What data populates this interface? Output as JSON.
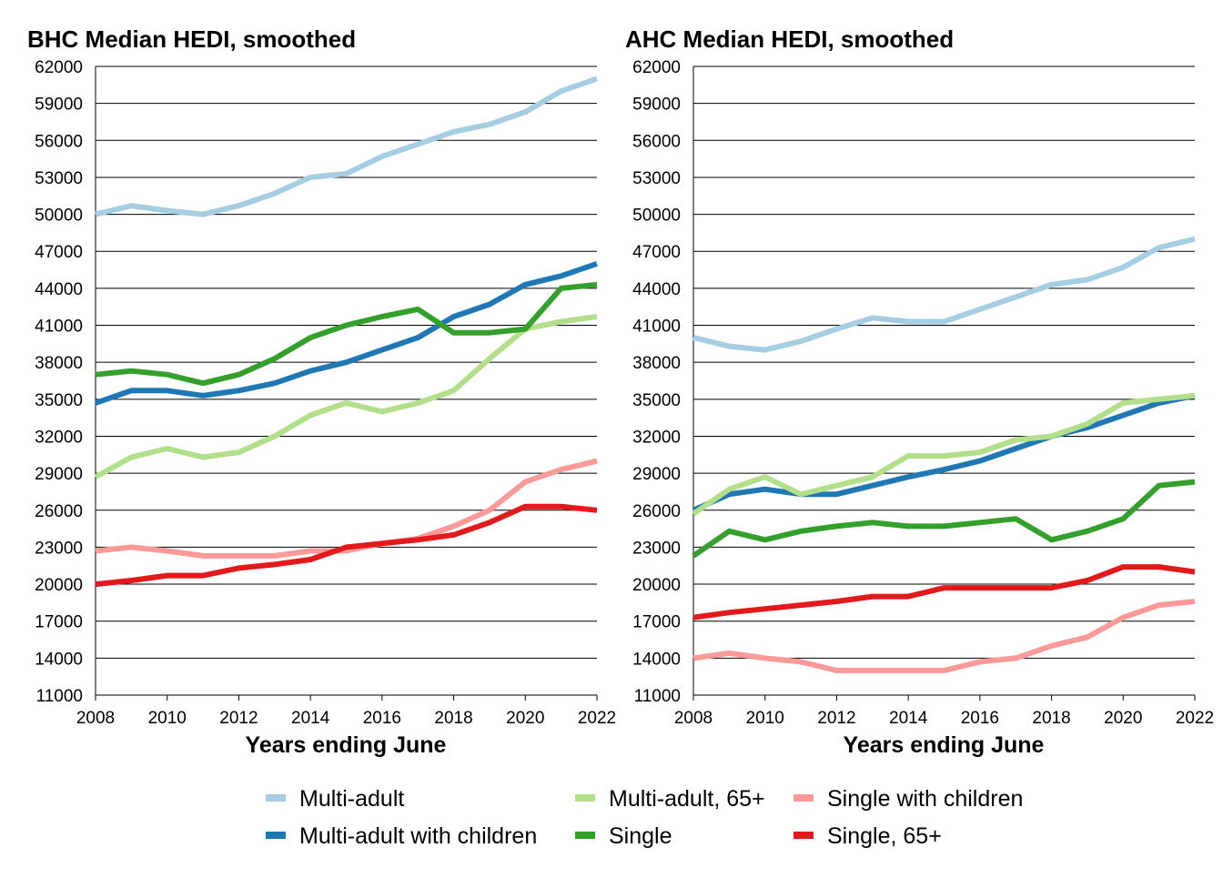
{
  "chart_data": [
    {
      "type": "line",
      "title": "BHC Median HEDI, smoothed",
      "xlabel": "Years ending June",
      "ylabel": "",
      "xlim": [
        2008,
        2022
      ],
      "ylim": [
        11000,
        62000
      ],
      "yticks": [
        11000,
        14000,
        17000,
        20000,
        23000,
        26000,
        29000,
        32000,
        35000,
        38000,
        41000,
        44000,
        47000,
        50000,
        53000,
        56000,
        59000,
        62000
      ],
      "xticks": [
        2008,
        2010,
        2012,
        2014,
        2016,
        2018,
        2020,
        2022
      ],
      "grid": "horizontal",
      "x": [
        2008,
        2009,
        2010,
        2011,
        2012,
        2013,
        2014,
        2015,
        2016,
        2017,
        2018,
        2019,
        2020,
        2021,
        2022
      ],
      "series": [
        {
          "name": "Multi-adult",
          "color": "#a6cee3",
          "values": [
            50000,
            50700,
            50300,
            50000,
            50700,
            51700,
            53000,
            53300,
            54700,
            55700,
            56700,
            57300,
            58300,
            60000,
            61000
          ]
        },
        {
          "name": "Multi-adult with children",
          "color": "#1f78b4",
          "values": [
            34700,
            35700,
            35700,
            35300,
            35700,
            36300,
            37300,
            38000,
            39000,
            40000,
            41700,
            42700,
            44300,
            45000,
            46000
          ]
        },
        {
          "name": "Multi-adult, 65+",
          "color": "#b2df8a",
          "values": [
            28700,
            30300,
            31000,
            30300,
            30700,
            32000,
            33700,
            34700,
            34000,
            34700,
            35700,
            38300,
            40700,
            41300,
            41700
          ]
        },
        {
          "name": "Single",
          "color": "#33a02c",
          "values": [
            37000,
            37300,
            37000,
            36300,
            37000,
            38300,
            40000,
            41000,
            41700,
            42300,
            40400,
            40400,
            40700,
            44000,
            44300
          ]
        },
        {
          "name": "Single with children",
          "color": "#fb9a99",
          "values": [
            22700,
            23000,
            22700,
            22300,
            22300,
            22300,
            22700,
            22700,
            23300,
            23700,
            24700,
            26000,
            28300,
            29300,
            30000
          ]
        },
        {
          "name": "Single, 65+",
          "color": "#e31a1c",
          "values": [
            20000,
            20300,
            20700,
            20700,
            21300,
            21600,
            22000,
            23000,
            23300,
            23600,
            24000,
            25000,
            26300,
            26300,
            26000
          ]
        }
      ]
    },
    {
      "type": "line",
      "title": "AHC Median HEDI, smoothed",
      "xlabel": "Years ending June",
      "ylabel": "",
      "xlim": [
        2008,
        2022
      ],
      "ylim": [
        11000,
        62000
      ],
      "yticks": [
        11000,
        14000,
        17000,
        20000,
        23000,
        26000,
        29000,
        32000,
        35000,
        38000,
        41000,
        44000,
        47000,
        50000,
        53000,
        56000,
        59000,
        62000
      ],
      "xticks": [
        2008,
        2010,
        2012,
        2014,
        2016,
        2018,
        2020,
        2022
      ],
      "grid": "horizontal",
      "x": [
        2008,
        2009,
        2010,
        2011,
        2012,
        2013,
        2014,
        2015,
        2016,
        2017,
        2018,
        2019,
        2020,
        2021,
        2022
      ],
      "series": [
        {
          "name": "Multi-adult",
          "color": "#a6cee3",
          "values": [
            40000,
            39300,
            39000,
            39700,
            40700,
            41600,
            41300,
            41300,
            42300,
            43300,
            44300,
            44700,
            45700,
            47300,
            48000
          ]
        },
        {
          "name": "Multi-adult with children",
          "color": "#1f78b4",
          "values": [
            26000,
            27300,
            27700,
            27300,
            27300,
            28000,
            28700,
            29300,
            30000,
            31000,
            32000,
            32700,
            33700,
            34700,
            35300
          ]
        },
        {
          "name": "Multi-adult, 65+",
          "color": "#b2df8a",
          "values": [
            25700,
            27700,
            28700,
            27300,
            28000,
            28700,
            30400,
            30400,
            30700,
            31700,
            32000,
            33000,
            34700,
            35000,
            35300
          ]
        },
        {
          "name": "Single",
          "color": "#33a02c",
          "values": [
            22300,
            24300,
            23600,
            24300,
            24700,
            25000,
            24700,
            24700,
            25000,
            25300,
            23600,
            24300,
            25300,
            28000,
            28300
          ]
        },
        {
          "name": "Single with children",
          "color": "#fb9a99",
          "values": [
            14000,
            14400,
            14000,
            13700,
            13000,
            13000,
            13000,
            13000,
            13700,
            14000,
            15000,
            15700,
            17300,
            18300,
            18600
          ]
        },
        {
          "name": "Single, 65+",
          "color": "#e31a1c",
          "values": [
            17300,
            17700,
            18000,
            18300,
            18600,
            19000,
            19000,
            19700,
            19700,
            19700,
            19700,
            20300,
            21400,
            21400,
            21000
          ]
        }
      ]
    }
  ],
  "legend": {
    "placement": "bottom",
    "items": [
      {
        "label": "Multi-adult",
        "color": "#a6cee3"
      },
      {
        "label": "Multi-adult, 65+",
        "color": "#b2df8a"
      },
      {
        "label": "Single with children",
        "color": "#fb9a99"
      },
      {
        "label": "Multi-adult with children",
        "color": "#1f78b4"
      },
      {
        "label": "Single",
        "color": "#33a02c"
      },
      {
        "label": "Single, 65+",
        "color": "#e31a1c"
      }
    ]
  }
}
